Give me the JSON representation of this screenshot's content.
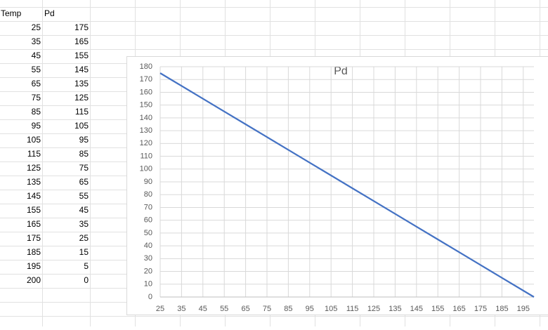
{
  "sheet": {
    "headers": [
      "Temp",
      "Pd"
    ],
    "rows": [
      [
        25,
        175
      ],
      [
        35,
        165
      ],
      [
        45,
        155
      ],
      [
        55,
        145
      ],
      [
        65,
        135
      ],
      [
        75,
        125
      ],
      [
        85,
        115
      ],
      [
        95,
        105
      ],
      [
        105,
        95
      ],
      [
        115,
        85
      ],
      [
        125,
        75
      ],
      [
        135,
        65
      ],
      [
        145,
        55
      ],
      [
        155,
        45
      ],
      [
        165,
        35
      ],
      [
        175,
        25
      ],
      [
        185,
        15
      ],
      [
        195,
        5
      ],
      [
        200,
        0
      ]
    ]
  },
  "chart_data": {
    "type": "line",
    "title": "Pd",
    "x": [
      25,
      35,
      45,
      55,
      65,
      75,
      85,
      95,
      105,
      115,
      125,
      135,
      145,
      155,
      165,
      175,
      185,
      195,
      200
    ],
    "values": [
      175,
      165,
      155,
      145,
      135,
      125,
      115,
      105,
      95,
      85,
      75,
      65,
      55,
      45,
      35,
      25,
      15,
      5,
      0
    ],
    "color": "#4472c4",
    "xlim": [
      25,
      200
    ],
    "xticks": [
      25,
      35,
      45,
      55,
      65,
      75,
      85,
      95,
      105,
      115,
      125,
      135,
      145,
      155,
      165,
      175,
      185,
      195
    ],
    "ylim": [
      0,
      180
    ],
    "yticks": [
      0,
      10,
      20,
      30,
      40,
      50,
      60,
      70,
      80,
      90,
      100,
      110,
      120,
      130,
      140,
      150,
      160,
      170,
      180
    ],
    "grid": true
  }
}
